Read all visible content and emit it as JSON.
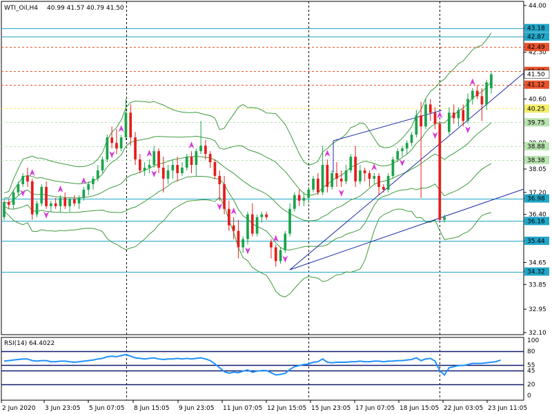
{
  "chart_data": [
    {
      "type": "candlestick",
      "symbol_title": "WTI_Oil,H4",
      "ohlc_title": "40.99 41.57 40.79 41.50",
      "price_axis_ticks": [
        "44.00",
        "43.18",
        "42.87",
        "42.49",
        "42.30",
        "41.62",
        "41.50",
        "41.12",
        "40.60",
        "40.25",
        "39.75",
        "39.00",
        "38.88",
        "38.38",
        "38.05",
        "37.20",
        "36.98",
        "36.40",
        "36.16",
        "35.44",
        "34.65",
        "34.32",
        "33.85",
        "32.95",
        "32.10"
      ],
      "x_labels": [
        "2 Jun 2020",
        "3 Jun 23:05",
        "5 Jun 07:05",
        "8 Jun 15:05",
        "9 Jun 23:05",
        "11 Jun 07:05",
        "12 Jun 15:05",
        "15 Jun 23:05",
        "17 Jun 07:05",
        "18 Jun 15:05",
        "22 Jun 03:05",
        "23 Jun 11:05"
      ],
      "ylim": [
        32.1,
        44.0
      ],
      "price_tags": [
        {
          "text": "43.18",
          "value": 43.18,
          "color": "#22a6c8",
          "kind": "solid"
        },
        {
          "text": "42.87",
          "value": 42.87,
          "color": "#22a6c8",
          "kind": "solid"
        },
        {
          "text": "42.49",
          "value": 42.49,
          "color": "#e8532e",
          "kind": "dashed"
        },
        {
          "text": "41.62",
          "value": 41.62,
          "color": "#e8532e",
          "kind": "dashed"
        },
        {
          "text": "41.12",
          "value": 41.12,
          "color": "#e8532e",
          "kind": "dashed"
        },
        {
          "text": "40.25",
          "value": 40.25,
          "color": "#f5ee6a",
          "kind": "dashed"
        },
        {
          "text": "39.75",
          "value": 39.75,
          "color": "#b9e4b0",
          "kind": "dashed"
        },
        {
          "text": "38.88",
          "value": 38.88,
          "color": "#b9e4b0",
          "kind": "dashed"
        },
        {
          "text": "38.38",
          "value": 38.38,
          "color": "#b9e4b0",
          "kind": "dashed"
        },
        {
          "text": "36.98",
          "value": 36.98,
          "color": "#22a6c8",
          "kind": "solid"
        },
        {
          "text": "36.16",
          "value": 36.16,
          "color": "#22a6c8",
          "kind": "solid"
        },
        {
          "text": "35.44",
          "value": 35.44,
          "color": "#22a6c8",
          "kind": "solid"
        },
        {
          "text": "34.32",
          "value": 34.32,
          "color": "#22a6c8",
          "kind": "solid"
        }
      ],
      "current_price_tag": {
        "text": "41.50",
        "value": 41.5
      },
      "candles": [
        [
          36.3,
          36.95,
          36.2,
          36.85
        ],
        [
          36.85,
          36.95,
          36.6,
          36.75
        ],
        [
          36.75,
          37.3,
          36.6,
          37.2
        ],
        [
          37.2,
          37.6,
          37.1,
          37.5
        ],
        [
          37.5,
          37.9,
          37.4,
          37.8
        ],
        [
          37.8,
          38.1,
          37.4,
          37.6
        ],
        [
          37.6,
          37.7,
          36.2,
          36.4
        ],
        [
          36.4,
          36.9,
          36.3,
          36.8
        ],
        [
          36.8,
          37.5,
          36.7,
          37.4
        ],
        [
          37.4,
          37.6,
          36.6,
          36.7
        ],
        [
          36.7,
          36.9,
          36.5,
          36.8
        ],
        [
          36.8,
          37.0,
          36.6,
          36.7
        ],
        [
          36.7,
          37.1,
          36.5,
          37.0
        ],
        [
          37.0,
          37.2,
          36.6,
          36.7
        ],
        [
          36.7,
          37.0,
          36.5,
          36.95
        ],
        [
          36.95,
          37.1,
          36.7,
          36.8
        ],
        [
          36.8,
          37.1,
          36.6,
          37.0
        ],
        [
          37.0,
          37.4,
          36.9,
          37.3
        ],
        [
          37.3,
          37.6,
          37.1,
          37.5
        ],
        [
          37.5,
          37.8,
          37.3,
          37.7
        ],
        [
          37.7,
          38.2,
          37.6,
          38.0
        ],
        [
          38.0,
          38.5,
          37.9,
          38.4
        ],
        [
          38.4,
          39.3,
          38.3,
          39.2
        ],
        [
          39.2,
          39.6,
          38.8,
          39.0
        ],
        [
          39.0,
          39.5,
          38.6,
          38.8
        ],
        [
          38.8,
          39.3,
          38.7,
          39.2
        ],
        [
          39.2,
          40.6,
          39.1,
          40.1
        ],
        [
          40.1,
          40.4,
          38.9,
          39.2
        ],
        [
          39.2,
          39.4,
          38.2,
          38.4
        ],
        [
          38.4,
          38.6,
          37.9,
          38.0
        ],
        [
          38.0,
          38.3,
          37.8,
          38.1
        ],
        [
          38.1,
          38.4,
          37.9,
          38.2
        ],
        [
          38.2,
          38.9,
          38.1,
          38.7
        ],
        [
          38.7,
          38.8,
          37.9,
          38.1
        ],
        [
          38.1,
          38.5,
          37.2,
          37.7
        ],
        [
          37.7,
          38.2,
          37.5,
          38.0
        ],
        [
          38.0,
          38.4,
          37.7,
          38.2
        ],
        [
          38.2,
          38.5,
          37.6,
          37.9
        ],
        [
          37.9,
          38.3,
          37.8,
          38.1
        ],
        [
          38.1,
          38.6,
          38.0,
          38.5
        ],
        [
          38.5,
          38.7,
          37.9,
          38.2
        ],
        [
          38.2,
          38.8,
          37.8,
          38.7
        ],
        [
          38.7,
          39.8,
          38.6,
          38.9
        ],
        [
          38.9,
          39.1,
          38.4,
          38.6
        ],
        [
          38.6,
          38.7,
          38.1,
          38.3
        ],
        [
          38.3,
          38.4,
          37.7,
          37.8
        ],
        [
          37.8,
          38.0,
          36.9,
          37.5
        ],
        [
          37.5,
          37.8,
          36.4,
          36.6
        ],
        [
          36.6,
          36.9,
          35.8,
          36.0
        ],
        [
          36.0,
          36.3,
          35.5,
          35.8
        ],
        [
          35.8,
          36.2,
          34.8,
          35.2
        ],
        [
          35.2,
          35.6,
          35.0,
          35.5
        ],
        [
          35.5,
          36.5,
          35.3,
          36.4
        ],
        [
          36.4,
          36.8,
          35.6,
          35.7
        ],
        [
          35.7,
          36.4,
          35.6,
          36.3
        ],
        [
          36.3,
          36.5,
          36.1,
          36.4
        ],
        [
          36.4,
          36.5,
          36.2,
          36.3
        ],
        [
          35.4,
          35.5,
          34.8,
          35.2
        ],
        [
          35.2,
          35.3,
          34.5,
          34.7
        ],
        [
          34.7,
          35.2,
          34.6,
          35.1
        ],
        [
          35.1,
          35.8,
          35.0,
          35.7
        ],
        [
          35.7,
          36.8,
          35.6,
          36.6
        ],
        [
          36.6,
          37.2,
          36.5,
          37.1
        ],
        [
          37.1,
          37.3,
          36.7,
          36.9
        ],
        [
          36.9,
          37.2,
          36.7,
          37.0
        ],
        [
          37.0,
          37.4,
          36.8,
          37.3
        ],
        [
          37.3,
          37.8,
          37.2,
          37.7
        ],
        [
          37.7,
          37.9,
          37.1,
          37.2
        ],
        [
          37.2,
          38.9,
          37.1,
          38.2
        ],
        [
          38.2,
          38.4,
          37.2,
          37.4
        ],
        [
          37.4,
          38.0,
          37.3,
          37.9
        ],
        [
          37.9,
          38.3,
          37.4,
          37.7
        ],
        [
          37.7,
          38.0,
          37.4,
          37.6
        ],
        [
          37.6,
          38.2,
          37.5,
          38.0
        ],
        [
          38.0,
          38.6,
          37.9,
          38.5
        ],
        [
          38.5,
          38.9,
          37.4,
          37.6
        ],
        [
          37.6,
          38.2,
          37.5,
          38.0
        ],
        [
          38.0,
          38.1,
          37.6,
          37.9
        ],
        [
          37.9,
          38.0,
          37.4,
          37.7
        ],
        [
          37.7,
          37.9,
          37.5,
          37.8
        ],
        [
          37.8,
          37.9,
          37.1,
          37.4
        ],
        [
          37.4,
          37.5,
          37.2,
          37.3
        ],
        [
          37.3,
          37.9,
          37.2,
          37.8
        ],
        [
          37.8,
          38.5,
          37.7,
          38.4
        ],
        [
          38.4,
          38.8,
          38.3,
          38.7
        ],
        [
          38.7,
          38.9,
          38.5,
          38.8
        ],
        [
          38.8,
          39.1,
          38.6,
          39.0
        ],
        [
          39.0,
          39.4,
          38.9,
          39.3
        ],
        [
          39.3,
          40.2,
          39.2,
          40.0
        ],
        [
          40.0,
          40.5,
          37.0,
          39.6
        ],
        [
          39.6,
          40.6,
          39.5,
          40.4
        ],
        [
          40.4,
          40.6,
          39.8,
          40.1
        ],
        [
          40.1,
          40.3,
          39.5,
          39.7
        ],
        [
          39.7,
          39.8,
          36.1,
          36.2
        ],
        [
          36.2,
          36.4,
          36.1,
          36.3
        ],
        [
          39.4,
          40.3,
          39.3,
          40.1
        ],
        [
          40.1,
          40.4,
          39.7,
          39.9
        ],
        [
          39.9,
          40.3,
          39.6,
          40.2
        ],
        [
          40.2,
          40.4,
          39.6,
          39.8
        ],
        [
          39.8,
          40.8,
          39.7,
          40.6
        ],
        [
          40.6,
          41.0,
          40.4,
          40.9
        ],
        [
          40.9,
          41.1,
          40.6,
          40.7
        ],
        [
          40.7,
          41.0,
          39.8,
          40.4
        ],
        [
          40.4,
          41.3,
          40.2,
          41.2
        ],
        [
          40.99,
          41.57,
          40.79,
          41.5
        ]
      ],
      "indicator_title": "RSI(14) 64.4022",
      "rsi_axis_ticks": [
        "100",
        "80",
        "55",
        "45",
        "20",
        "0"
      ],
      "rsi_levels": [
        80,
        55,
        45,
        20
      ],
      "rsi_values": [
        62,
        63,
        64,
        65,
        66,
        66,
        63,
        62,
        63,
        63,
        61,
        61,
        62,
        62,
        61,
        60,
        61,
        62,
        63,
        64,
        66,
        67,
        70,
        71,
        70,
        72,
        74,
        71,
        68,
        67,
        66,
        67,
        68,
        66,
        65,
        66,
        66,
        67,
        66,
        67,
        66,
        67,
        68,
        66,
        63,
        57,
        50,
        43,
        40,
        42,
        41,
        44,
        46,
        42,
        44,
        45,
        45,
        41,
        37,
        38,
        40,
        47,
        52,
        54,
        56,
        57,
        60,
        61,
        66,
        60,
        59,
        60,
        60,
        60,
        61,
        61,
        62,
        61,
        61,
        62,
        62,
        61,
        62,
        62,
        63,
        63,
        64,
        65,
        68,
        63,
        66,
        67,
        62,
        45,
        37,
        50,
        52,
        54,
        54,
        56,
        58,
        58,
        58,
        59,
        60,
        61,
        64
      ]
    }
  ],
  "colors": {
    "bull": "#1aa34a",
    "bear": "#e51c1c",
    "band": "#3c9a3c",
    "trend": "#1a2aa8",
    "arrow": "#d83bd8",
    "level_solid": "#22a6c8",
    "level_red": "#e8532e",
    "rsi_line": "#1e90ff",
    "rsi_level": "#101a6e"
  }
}
